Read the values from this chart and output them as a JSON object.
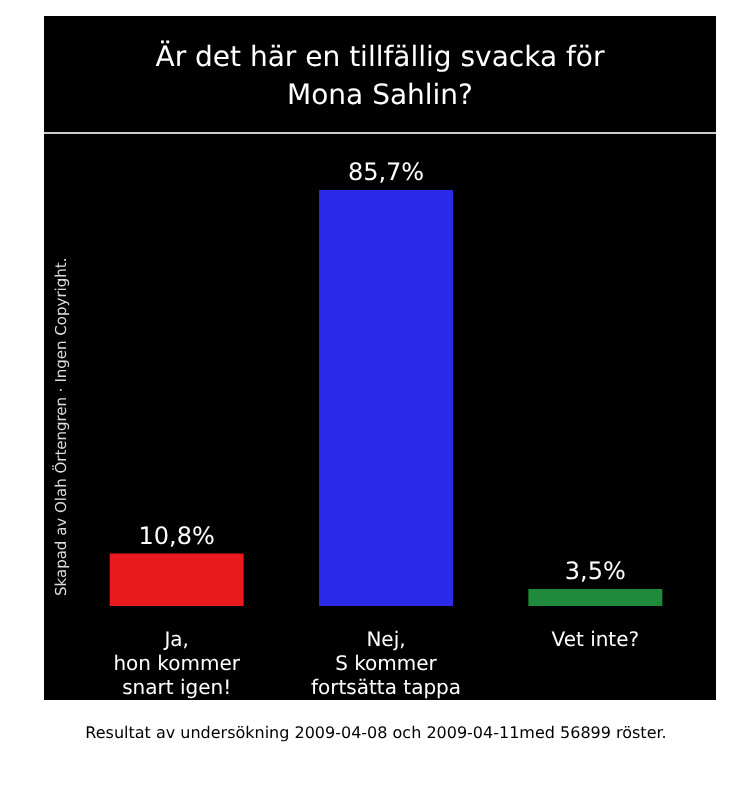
{
  "chart_data": {
    "type": "bar",
    "title": "Är det här en tillfällig svacka för Mona Sahlin?",
    "categories": [
      "Ja,\nhon kommer\nsnart igen!",
      "Nej,\nS kommer\nfortsätta tappa",
      "Vet inte?"
    ],
    "values": [
      10.8,
      85.7,
      3.5
    ],
    "colors": [
      "#e81a1e",
      "#2a2ae8",
      "#1f8a3c"
    ],
    "value_labels": [
      "10,8%",
      "85,7%",
      "3,5%"
    ],
    "annotations": [
      "Skapad av Olah Örtengren · Ingen Copyright.",
      "Resultat av undersökning 2009-04-08 och 2009-04-11med 56899 röster."
    ]
  }
}
